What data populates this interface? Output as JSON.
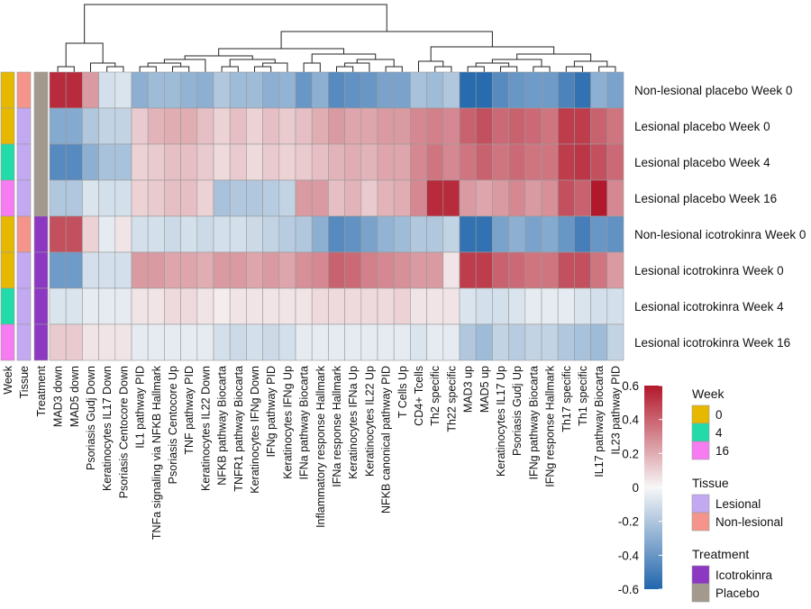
{
  "chart_data": {
    "type": "heatmap",
    "title": "",
    "color_scale": {
      "min": -0.6,
      "max": 0.6,
      "ticks": [
        "0.6",
        "0.4",
        "0.2",
        "0",
        "-0.2",
        "-0.4",
        "-0.6"
      ],
      "tick_values": [
        0.6,
        0.4,
        0.2,
        0,
        -0.2,
        -0.4,
        -0.6
      ],
      "low_color": "#2166ac",
      "mid_color": "#f7f7f7",
      "high_color": "#b2182b"
    },
    "columns": [
      "MAD3 down",
      "MAD5 down",
      "Psoriasis Gudj Down",
      "Keratinocytes IL17 Down",
      "Psoriasis Centocore Down",
      "IL1 pathway PID",
      "TNFa signaling via NFKB Hallmark",
      "Psoriasis Centocore Up",
      "TNF pathway PID",
      "Keratinocytes IL22 Down",
      "NFKB pathway Biocarta",
      "TNFR1 pathway Biocarta",
      "Keratinocytes IFNg Down",
      "IFNg pathway PID",
      "Keratinocytes IFNg Up",
      "IFNa pathway Biocarta",
      "Inflammatory response Hallmark",
      "IFNa response Hallmark",
      "Keratinocytes IFNa Up",
      "Keratinocytes IL22 Up",
      "NFKB canonical pathway PID",
      "T Cells Up",
      "CD4+ Tcells",
      "Th2 specific",
      "Th22 specific",
      "MAD3 up",
      "MAD5 up",
      "Keratinocytes IL17 Up",
      "Psoriasis Gudj Up",
      "IFNg pathway Biocarta",
      "IFNg response Hallmark",
      "Th17 specific",
      "Th1 specific",
      "IL17 pathway Biocarta",
      "IL23 pathway PID"
    ],
    "rows": [
      "Non-lesional placebo Week 0",
      "Lesional placebo Week 0",
      "Lesional placebo Week 4",
      "Lesional placebo Week 16",
      "Non-lesional icotrokinra Week 0",
      "Lesional icotrokinra Week 0",
      "Lesional icotrokinra Week 4",
      "Lesional icotrokinra Week 16"
    ],
    "values": [
      [
        0.55,
        0.55,
        0.25,
        -0.1,
        -0.08,
        -0.3,
        -0.25,
        -0.25,
        -0.28,
        -0.3,
        -0.2,
        -0.25,
        -0.25,
        -0.3,
        -0.28,
        -0.4,
        -0.3,
        -0.45,
        -0.42,
        -0.4,
        -0.35,
        -0.35,
        -0.22,
        -0.25,
        -0.2,
        -0.58,
        -0.58,
        -0.45,
        -0.4,
        -0.38,
        -0.38,
        -0.48,
        -0.55,
        -0.3,
        -0.35
      ],
      [
        -0.32,
        -0.32,
        -0.2,
        -0.15,
        -0.15,
        0.12,
        0.18,
        0.2,
        0.2,
        0.15,
        0.1,
        0.15,
        0.1,
        0.15,
        0.12,
        0.15,
        0.2,
        0.25,
        0.22,
        0.22,
        0.25,
        0.25,
        0.3,
        0.32,
        0.3,
        0.4,
        0.45,
        0.38,
        0.4,
        0.38,
        0.35,
        0.5,
        0.5,
        0.4,
        0.35
      ],
      [
        -0.45,
        -0.45,
        -0.3,
        -0.22,
        -0.22,
        0.1,
        0.12,
        0.15,
        0.15,
        0.12,
        0.08,
        0.12,
        0.08,
        0.12,
        0.1,
        0.12,
        0.15,
        0.18,
        0.2,
        0.18,
        0.22,
        0.22,
        0.3,
        0.35,
        0.3,
        0.35,
        0.4,
        0.35,
        0.38,
        0.35,
        0.35,
        0.5,
        0.52,
        0.45,
        0.38
      ],
      [
        -0.2,
        -0.2,
        -0.08,
        -0.1,
        -0.1,
        0.1,
        0.12,
        0.15,
        0.15,
        0.1,
        -0.22,
        -0.2,
        -0.2,
        -0.18,
        -0.15,
        0.25,
        0.25,
        0.15,
        0.18,
        0.12,
        0.18,
        0.2,
        0.3,
        0.55,
        0.55,
        0.25,
        0.22,
        0.25,
        0.3,
        0.25,
        0.28,
        0.45,
        0.4,
        0.6,
        0.3
      ],
      [
        0.45,
        0.45,
        0.1,
        -0.05,
        0.05,
        -0.1,
        -0.1,
        -0.12,
        -0.1,
        -0.12,
        -0.1,
        -0.1,
        -0.12,
        -0.15,
        -0.18,
        -0.2,
        -0.3,
        -0.45,
        -0.42,
        -0.35,
        -0.28,
        -0.25,
        -0.2,
        -0.2,
        -0.15,
        -0.55,
        -0.55,
        -0.35,
        -0.3,
        -0.35,
        -0.32,
        -0.4,
        -0.5,
        -0.4,
        -0.42
      ],
      [
        -0.38,
        -0.38,
        -0.1,
        -0.1,
        -0.1,
        0.25,
        0.25,
        0.22,
        0.22,
        0.2,
        0.25,
        0.25,
        0.22,
        0.25,
        0.22,
        0.28,
        0.3,
        0.4,
        0.38,
        0.32,
        0.3,
        0.28,
        0.25,
        0.25,
        0.05,
        0.5,
        0.5,
        0.4,
        0.38,
        0.35,
        0.35,
        0.45,
        0.45,
        0.35,
        0.25
      ],
      [
        -0.08,
        -0.08,
        -0.05,
        -0.05,
        -0.05,
        0.05,
        0.05,
        0.08,
        0.08,
        0.05,
        0.03,
        0.05,
        0.05,
        0.05,
        0.05,
        0.05,
        0.08,
        0.08,
        0.08,
        0.08,
        0.08,
        0.1,
        0.05,
        0.05,
        0.05,
        -0.08,
        -0.1,
        -0.1,
        -0.08,
        -0.05,
        -0.05,
        -0.05,
        -0.08,
        -0.1,
        -0.1
      ],
      [
        0.12,
        0.12,
        0.05,
        0.05,
        0.05,
        -0.05,
        -0.05,
        -0.05,
        -0.05,
        -0.05,
        -0.1,
        -0.12,
        -0.1,
        -0.12,
        -0.1,
        -0.05,
        -0.05,
        -0.05,
        -0.05,
        -0.05,
        -0.05,
        -0.05,
        -0.08,
        -0.05,
        -0.05,
        -0.2,
        -0.25,
        -0.15,
        -0.18,
        -0.15,
        -0.15,
        -0.2,
        -0.22,
        -0.25,
        -0.15
      ]
    ],
    "row_annotations": {
      "columns": [
        "Week",
        "Tissue",
        "Treatment"
      ],
      "week": [
        "0",
        "0",
        "4",
        "16",
        "0",
        "0",
        "4",
        "16"
      ],
      "tissue": [
        "Non-lesional",
        "Lesional",
        "Lesional",
        "Lesional",
        "Non-lesional",
        "Lesional",
        "Lesional",
        "Lesional"
      ],
      "treatment": [
        "Placebo",
        "Placebo",
        "Placebo",
        "Placebo",
        "Icotrokinra",
        "Icotrokinra",
        "Icotrokinra",
        "Icotrokinra"
      ]
    },
    "legends": [
      {
        "title": "Week",
        "items": [
          {
            "label": "0",
            "color": "#e6b800"
          },
          {
            "label": "4",
            "color": "#22dba8"
          },
          {
            "label": "16",
            "color": "#f77cf2"
          }
        ]
      },
      {
        "title": "Tissue",
        "items": [
          {
            "label": "Lesional",
            "color": "#c3a8f2"
          },
          {
            "label": "Non-lesional",
            "color": "#f4948a"
          }
        ]
      },
      {
        "title": "Treatment",
        "items": [
          {
            "label": "Icotrokinra",
            "color": "#8c38c2"
          },
          {
            "label": "Placebo",
            "color": "#a39a8e"
          }
        ]
      }
    ],
    "dendrogram": "column clustering tree shown above heatmap"
  }
}
